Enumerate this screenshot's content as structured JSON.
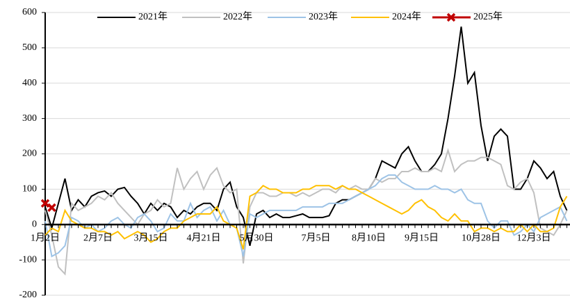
{
  "chart_data": {
    "type": "line",
    "categories": [
      "1月2日",
      null,
      null,
      null,
      null,
      null,
      null,
      null,
      "2月7日",
      null,
      null,
      null,
      null,
      null,
      null,
      null,
      "3月15日",
      null,
      null,
      null,
      null,
      null,
      null,
      null,
      "4月21日",
      null,
      null,
      null,
      null,
      null,
      null,
      null,
      "5月30日",
      null,
      null,
      null,
      null,
      null,
      null,
      null,
      null,
      "7月5日",
      null,
      null,
      null,
      null,
      null,
      null,
      null,
      "8月10日",
      null,
      null,
      null,
      null,
      null,
      null,
      null,
      "9月15日",
      null,
      null,
      null,
      null,
      null,
      null,
      null,
      null,
      "10月28日",
      null,
      null,
      null,
      null,
      null,
      null,
      null,
      "12月3日",
      null,
      null,
      null,
      null,
      null
    ],
    "series": [
      {
        "name": "2021年",
        "color": "#000000",
        "values": [
          50,
          -10,
          60,
          130,
          40,
          70,
          50,
          80,
          90,
          95,
          80,
          100,
          105,
          80,
          60,
          30,
          60,
          40,
          60,
          50,
          20,
          40,
          30,
          50,
          60,
          60,
          40,
          100,
          120,
          50,
          20,
          -60,
          30,
          40,
          20,
          30,
          20,
          20,
          25,
          30,
          20,
          20,
          20,
          25,
          60,
          70,
          70,
          80,
          90,
          100,
          130,
          180,
          170,
          160,
          200,
          220,
          180,
          150,
          150,
          170,
          200,
          300,
          420,
          560,
          400,
          430,
          280,
          180,
          250,
          270,
          250,
          100,
          100,
          130,
          180,
          160,
          130,
          150,
          80,
          40
        ]
      },
      {
        "name": "2022年",
        "color": "#c0c0c0",
        "values": [
          40,
          -30,
          -120,
          -140,
          60,
          40,
          50,
          60,
          80,
          70,
          90,
          60,
          40,
          20,
          0,
          30,
          40,
          70,
          50,
          60,
          160,
          100,
          130,
          150,
          100,
          140,
          160,
          110,
          90,
          100,
          -110,
          50,
          90,
          90,
          80,
          80,
          90,
          90,
          80,
          90,
          80,
          90,
          100,
          100,
          90,
          110,
          100,
          110,
          100,
          100,
          130,
          120,
          130,
          130,
          150,
          150,
          160,
          150,
          150,
          160,
          150,
          210,
          150,
          170,
          180,
          180,
          190,
          190,
          180,
          170,
          110,
          100,
          120,
          130,
          90,
          -10,
          -20,
          -30,
          0,
          40
        ]
      },
      {
        "name": "2023年",
        "color": "#9dc3e6",
        "values": [
          10,
          -90,
          -80,
          -60,
          20,
          10,
          -10,
          0,
          -20,
          -10,
          10,
          20,
          0,
          -10,
          20,
          30,
          10,
          -20,
          -10,
          30,
          10,
          10,
          60,
          20,
          40,
          50,
          10,
          40,
          0,
          -10,
          -90,
          30,
          20,
          30,
          40,
          40,
          40,
          40,
          40,
          50,
          50,
          50,
          50,
          60,
          60,
          60,
          70,
          80,
          90,
          100,
          110,
          130,
          140,
          140,
          120,
          110,
          100,
          100,
          100,
          110,
          100,
          100,
          90,
          100,
          70,
          60,
          60,
          10,
          -10,
          10,
          10,
          -30,
          -20,
          0,
          -20,
          20,
          30,
          40,
          50,
          10
        ]
      },
      {
        "name": "2024年",
        "color": "#ffc000",
        "values": [
          -30,
          -10,
          -20,
          40,
          10,
          0,
          -10,
          -10,
          -20,
          -20,
          -30,
          -20,
          -40,
          -30,
          -20,
          -30,
          -50,
          -40,
          -20,
          -10,
          -10,
          10,
          20,
          30,
          30,
          30,
          50,
          10,
          0,
          -10,
          -70,
          80,
          90,
          110,
          100,
          100,
          90,
          90,
          90,
          100,
          100,
          110,
          110,
          110,
          100,
          110,
          100,
          100,
          90,
          80,
          70,
          60,
          50,
          40,
          30,
          40,
          60,
          70,
          50,
          40,
          20,
          10,
          30,
          10,
          10,
          -20,
          -10,
          -10,
          -20,
          -10,
          -20,
          -20,
          0,
          -20,
          0,
          -20,
          -20,
          -10,
          50,
          80
        ]
      },
      {
        "name": "2025年",
        "color": "#c00000",
        "marker": "x",
        "values": [
          60,
          48,
          null,
          null,
          null,
          null,
          null,
          null,
          null,
          null,
          null,
          null,
          null,
          null,
          null,
          null,
          null,
          null,
          null,
          null,
          null,
          null,
          null,
          null,
          null,
          null,
          null,
          null,
          null,
          null,
          null,
          null,
          null,
          null,
          null,
          null,
          null,
          null,
          null,
          null,
          null,
          null,
          null,
          null,
          null,
          null,
          null,
          null,
          null,
          null,
          null,
          null,
          null,
          null,
          null,
          null,
          null,
          null,
          null,
          null,
          null,
          null,
          null,
          null,
          null,
          null,
          null,
          null,
          null,
          null,
          null,
          null,
          null,
          null,
          null,
          null,
          null,
          null,
          null,
          null
        ]
      }
    ],
    "ylim": [
      -200,
      600
    ],
    "yticks": [
      -200,
      -100,
      0,
      100,
      200,
      300,
      400,
      500,
      600
    ],
    "grid": true,
    "legend": "top"
  }
}
